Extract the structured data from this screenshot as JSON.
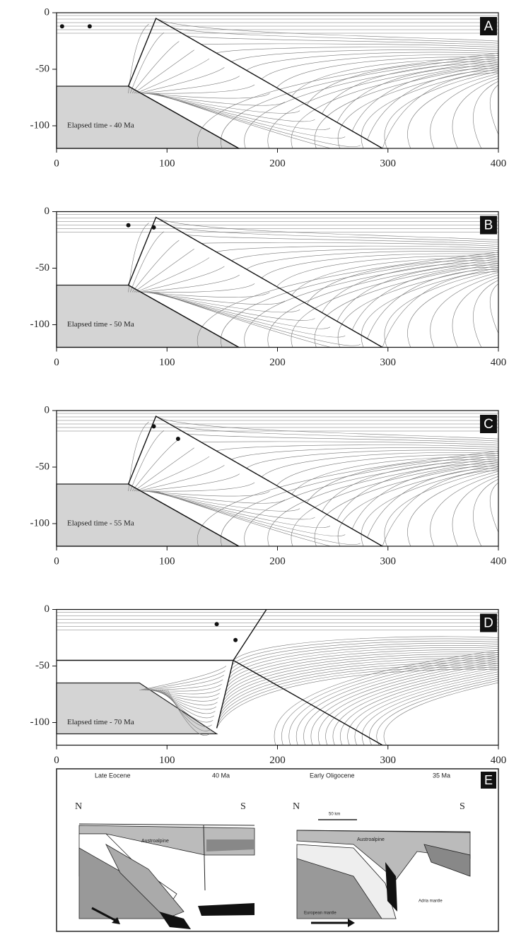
{
  "chart_data": [
    {
      "type": "line",
      "panel_label": "A",
      "annotation": "Elapsed time - 40 Ma",
      "xlim": [
        0,
        400
      ],
      "ylim": [
        -120,
        0
      ],
      "xticks": [
        0,
        100,
        200,
        300,
        400
      ],
      "yticks": [
        0,
        -50,
        -100
      ],
      "block": {
        "x": [
          0,
          65,
          165,
          0
        ],
        "y": [
          -65,
          -65,
          -120,
          -120
        ]
      },
      "faults": [
        {
          "x": [
            65,
            90,
            295
          ],
          "y": [
            -65,
            -5,
            -120
          ]
        },
        {
          "x": [
            65,
            165
          ],
          "y": [
            -65,
            -120
          ]
        }
      ],
      "points": {
        "x": [
          5,
          30
        ],
        "y": [
          -12,
          -12
        ]
      }
    },
    {
      "type": "line",
      "panel_label": "B",
      "annotation": "Elapsed time - 50 Ma",
      "xlim": [
        0,
        400
      ],
      "ylim": [
        -120,
        0
      ],
      "xticks": [
        0,
        100,
        200,
        300,
        400
      ],
      "yticks": [
        0,
        -50,
        -100
      ],
      "block": {
        "x": [
          0,
          65,
          165,
          0
        ],
        "y": [
          -65,
          -65,
          -120,
          -120
        ]
      },
      "faults": [
        {
          "x": [
            65,
            90,
            295
          ],
          "y": [
            -65,
            -5,
            -120
          ]
        },
        {
          "x": [
            65,
            165
          ],
          "y": [
            -65,
            -120
          ]
        }
      ],
      "points": {
        "x": [
          65,
          88
        ],
        "y": [
          -12,
          -14
        ]
      }
    },
    {
      "type": "line",
      "panel_label": "C",
      "annotation": "Elapsed time - 55 Ma",
      "xlim": [
        0,
        400
      ],
      "ylim": [
        -120,
        0
      ],
      "xticks": [
        0,
        100,
        200,
        300,
        400
      ],
      "yticks": [
        0,
        -50,
        -100
      ],
      "block": {
        "x": [
          0,
          65,
          165,
          0
        ],
        "y": [
          -65,
          -65,
          -120,
          -120
        ]
      },
      "faults": [
        {
          "x": [
            65,
            90,
            295
          ],
          "y": [
            -65,
            -5,
            -120
          ]
        },
        {
          "x": [
            65,
            165
          ],
          "y": [
            -65,
            -120
          ]
        }
      ],
      "points": {
        "x": [
          88,
          110
        ],
        "y": [
          -14,
          -25
        ]
      }
    },
    {
      "type": "line",
      "panel_label": "D",
      "annotation": "Elapsed time - 70 Ma",
      "xlim": [
        0,
        400
      ],
      "ylim": [
        -120,
        0
      ],
      "xticks": [
        0,
        100,
        200,
        300,
        400
      ],
      "yticks": [
        0,
        -50,
        -100
      ],
      "block": {
        "x": [
          0,
          75,
          145,
          0
        ],
        "y": [
          -65,
          -65,
          -110,
          -110
        ]
      },
      "faults": [
        {
          "x": [
            190,
            160,
            145
          ],
          "y": [
            0,
            -45,
            -105
          ]
        },
        {
          "x": [
            0,
            160,
            295
          ],
          "y": [
            -45,
            -45,
            -120
          ]
        }
      ],
      "points": {
        "x": [
          145,
          162
        ],
        "y": [
          -13,
          -27
        ]
      }
    }
  ],
  "figure_e": {
    "panel_label": "E",
    "left": {
      "title": "Late Eocene",
      "age": "40 Ma",
      "north": "N",
      "south": "S",
      "unit": "Austroalpine"
    },
    "right": {
      "title": "Early Oligocene",
      "age": "35 Ma",
      "north": "N",
      "south": "S",
      "scale": "50 km",
      "unit": "Austroalpine",
      "mantle_adria": "Adria mantle",
      "mantle_europe": "European mantle"
    }
  }
}
